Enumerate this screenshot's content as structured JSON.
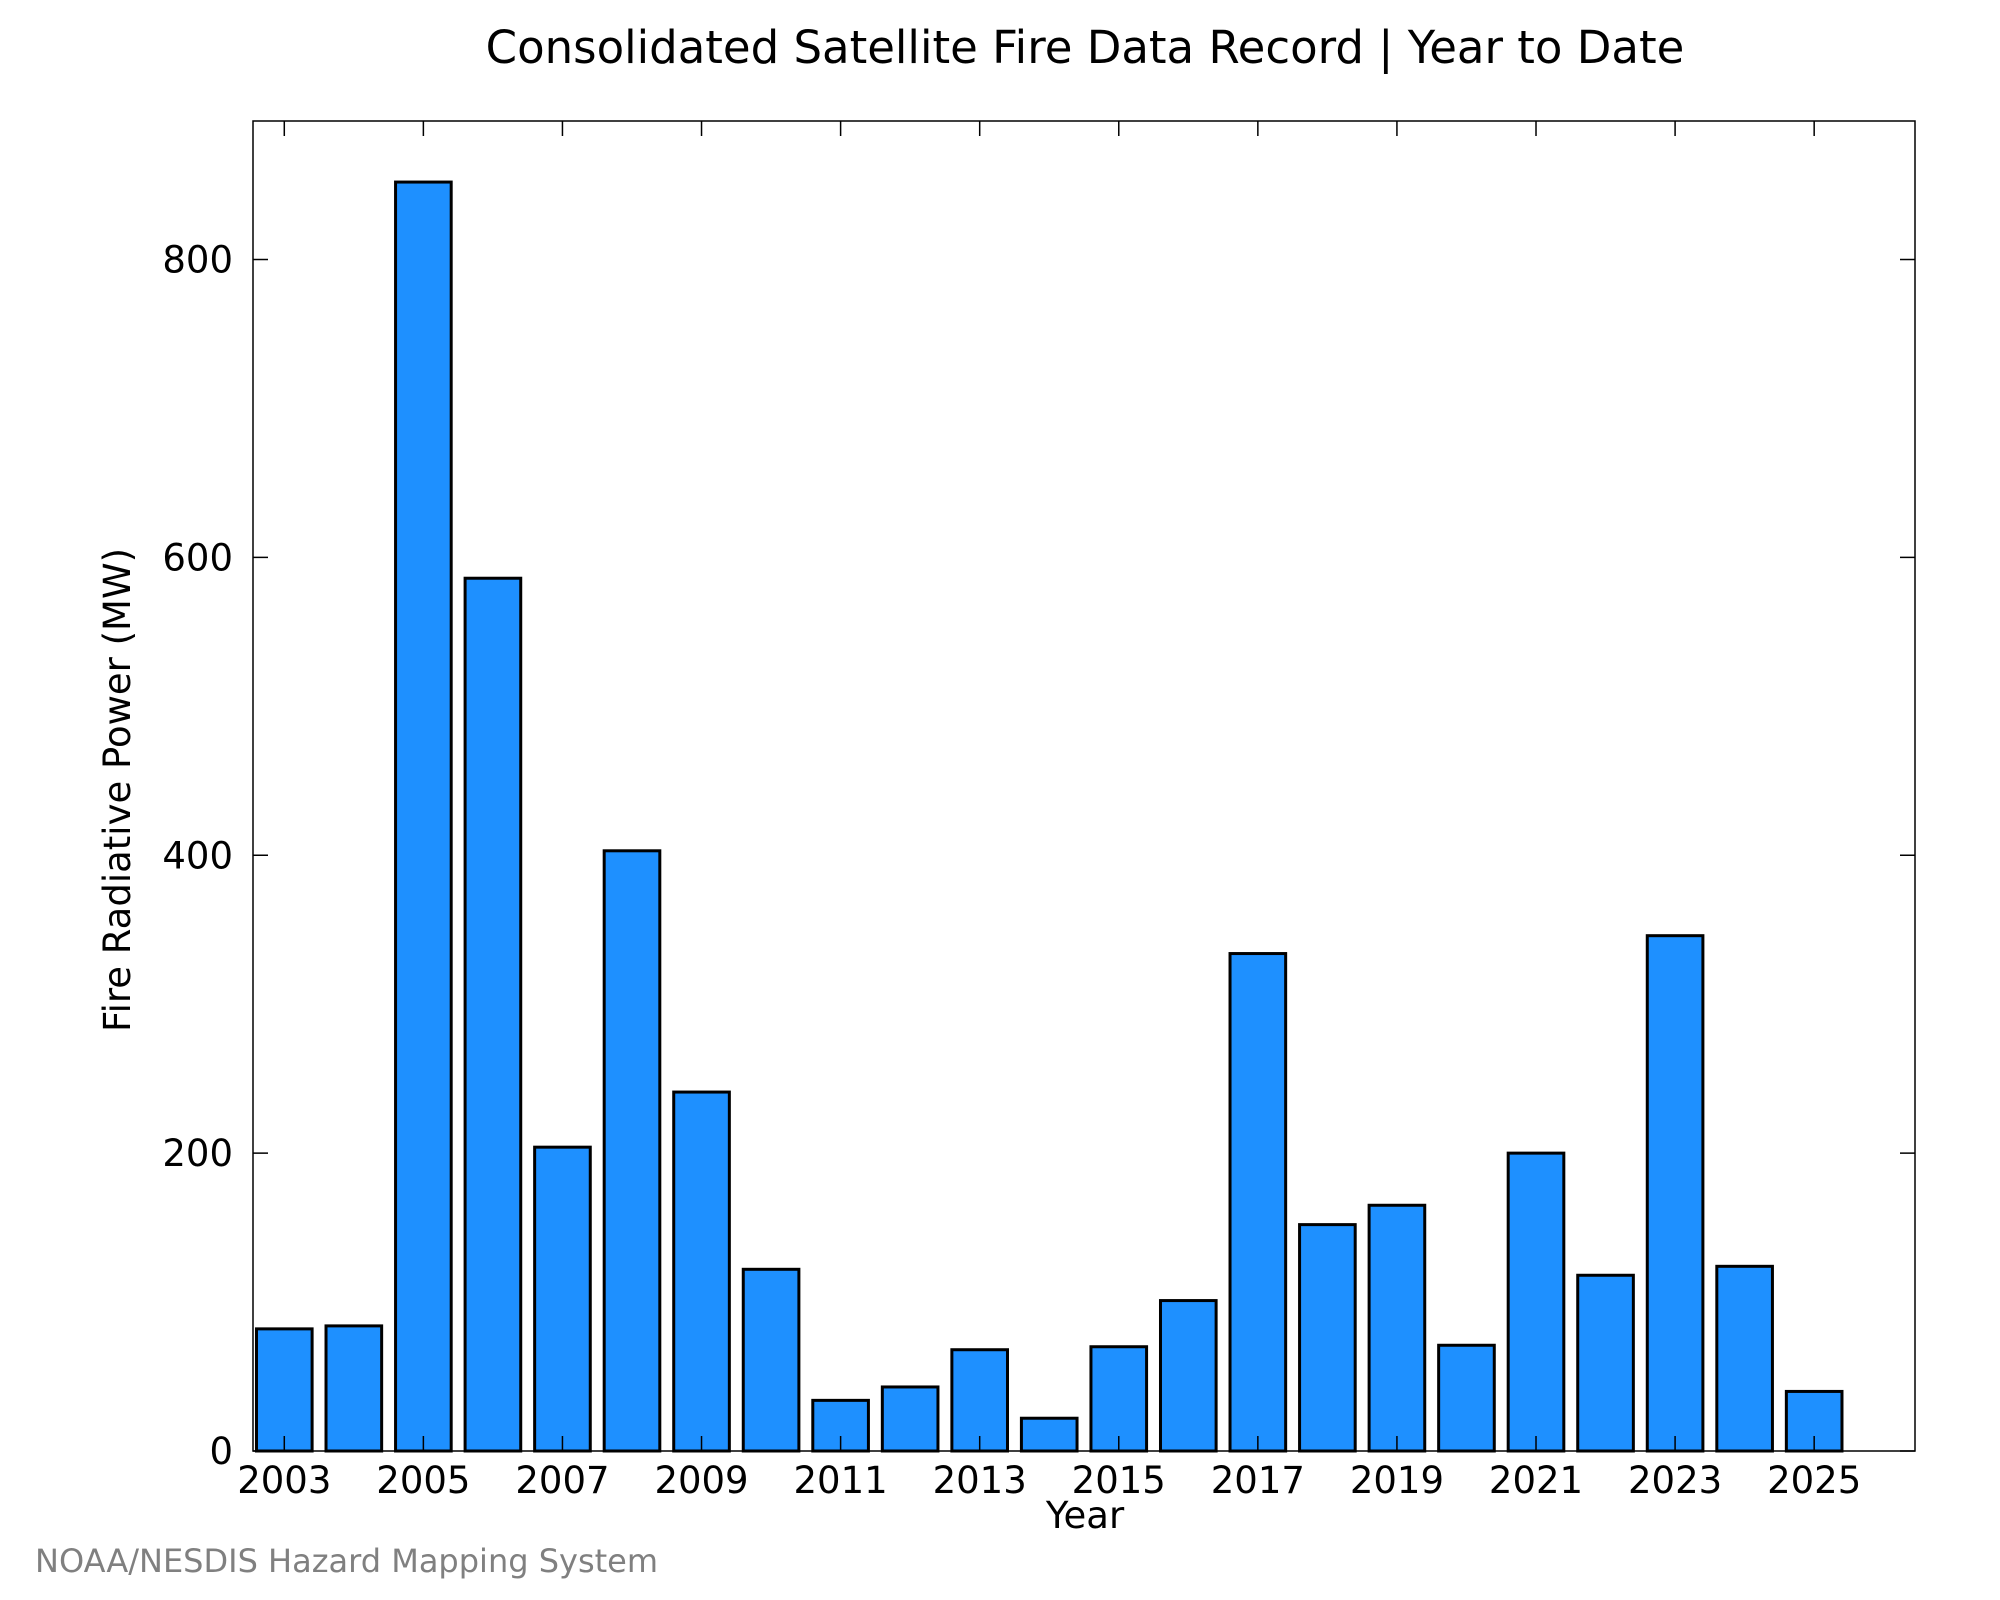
{
  "chart_data": {
    "type": "bar",
    "title": "Consolidated Satellite Fire Data Record | Year to Date",
    "xlabel": "Year",
    "ylabel": "Fire Radiative Power (MW)",
    "source": "NOAA/NESDIS Hazard Mapping System",
    "x": [
      2003,
      2004,
      2005,
      2006,
      2007,
      2008,
      2009,
      2010,
      2011,
      2012,
      2013,
      2014,
      2015,
      2016,
      2017,
      2018,
      2019,
      2020,
      2021,
      2022,
      2023,
      2024,
      2025
    ],
    "values": [
      82,
      84,
      852,
      586,
      204,
      403,
      241,
      122,
      34,
      43,
      68,
      22,
      70,
      101,
      334,
      152,
      165,
      71,
      200,
      118,
      346,
      124,
      40
    ],
    "xticks": [
      "2003",
      "2005",
      "2007",
      "2009",
      "2011",
      "2013",
      "2015",
      "2017",
      "2019",
      "2021",
      "2023",
      "2025"
    ],
    "yticks": [
      "0",
      "200",
      "400",
      "600",
      "800"
    ],
    "xlim": [
      2002.55,
      2026.45
    ],
    "ylim": [
      0,
      893
    ],
    "grid": false,
    "bar_color": "#1e90ff",
    "edge_color": "#000000"
  }
}
